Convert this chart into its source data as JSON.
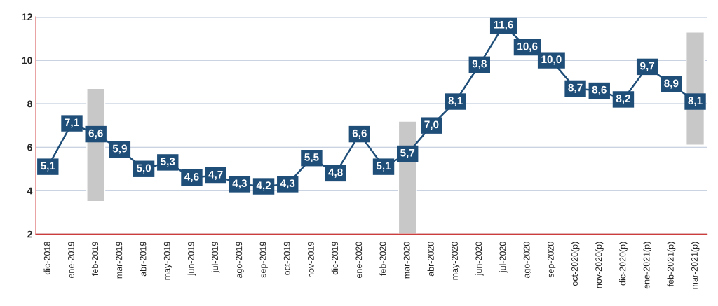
{
  "chart_data": {
    "type": "line",
    "categories": [
      "dic-2018",
      "ene-2019",
      "feb-2019",
      "mar-2019",
      "abr-2019",
      "may-2019",
      "jun-2019",
      "jul-2019",
      "ago-2019",
      "sep-2019",
      "oct-2019",
      "nov-2019",
      "dic-2019",
      "ene-2020",
      "feb-2020",
      "mar-2020",
      "abr-2020",
      "may-2020",
      "jun-2020",
      "jul-2020",
      "ago-2020",
      "sep-2020",
      "oct-2020(p)",
      "nov-2020(p)",
      "dic-2020(p)",
      "ene-2021(p)",
      "feb-2021(p)",
      "mar-2021(p)"
    ],
    "series": [
      {
        "type": "bar",
        "color": "#c8c8c8",
        "base": [
          null,
          null,
          3.5,
          null,
          null,
          null,
          null,
          null,
          null,
          null,
          null,
          null,
          null,
          null,
          null,
          2.0,
          null,
          null,
          null,
          null,
          null,
          null,
          null,
          null,
          null,
          null,
          null,
          6.1
        ],
        "values": [
          null,
          null,
          5.2,
          null,
          null,
          null,
          null,
          null,
          null,
          null,
          null,
          null,
          null,
          null,
          null,
          5.2,
          null,
          null,
          null,
          null,
          null,
          null,
          null,
          null,
          null,
          null,
          null,
          5.2
        ]
      },
      {
        "color": "#1f4e79",
        "marker": "square",
        "values": [
          5.1,
          7.1,
          6.6,
          5.9,
          5.0,
          5.3,
          4.6,
          4.7,
          4.3,
          4.2,
          4.3,
          5.5,
          4.8,
          6.6,
          5.1,
          5.7,
          7.0,
          8.1,
          9.8,
          11.6,
          10.6,
          10.0,
          8.7,
          8.6,
          8.2,
          9.7,
          8.9,
          8.1
        ],
        "value_labels": [
          "5,1",
          "7,1",
          "6,6",
          "5,9",
          "5,0",
          "5,3",
          "4,6",
          "4,7",
          "4,3",
          "4,2",
          "4,3",
          "5,5",
          "4,8",
          "6,6",
          "5,1",
          "5,7",
          "7,0",
          "8,1",
          "9,8",
          "11,6",
          "10,6",
          "10,0",
          "8,7",
          "8,6",
          "8,2",
          "9,7",
          "8,9",
          "8,1"
        ]
      }
    ],
    "ylim": [
      2,
      12
    ],
    "yticks": [
      2,
      4,
      6,
      8,
      10,
      12
    ],
    "grid": "y"
  }
}
